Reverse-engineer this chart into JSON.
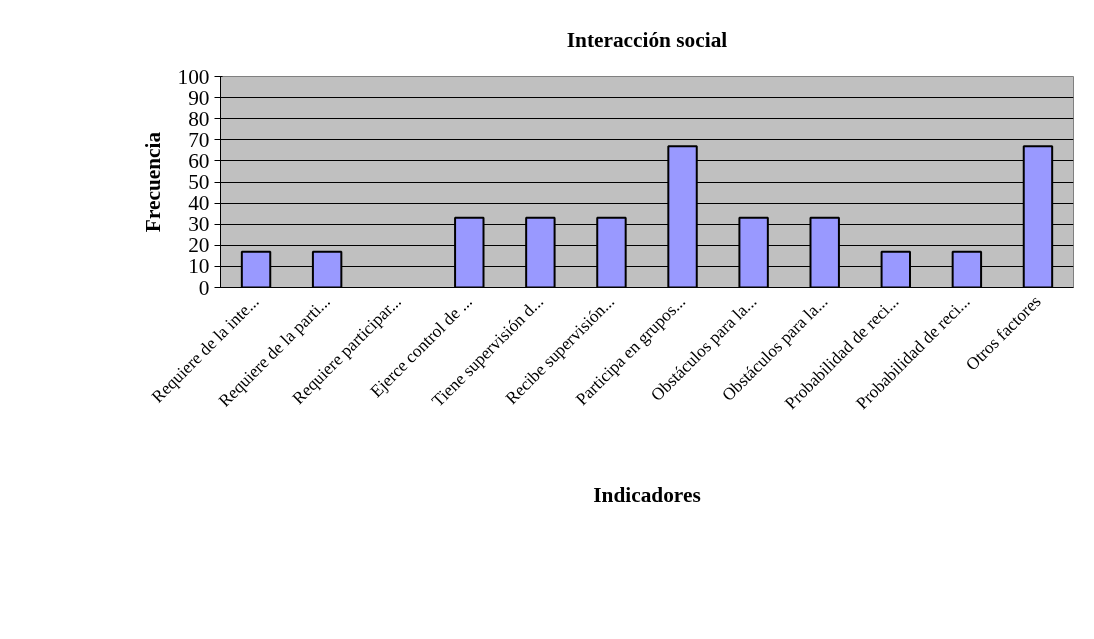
{
  "chart_data": {
    "type": "bar",
    "title": "Interacción social",
    "xlabel": "Indicadores",
    "ylabel": "Frecuencia",
    "categories": [
      "Requiere de la inte...",
      "Requiere de la parti...",
      "Requiere participar...",
      "Ejerce control de ...",
      "Tiene supervisión d...",
      "Recibe supervisión...",
      "Participa en grupos...",
      "Obstáculos para la...",
      "Obstáculos para la...",
      "Probabilidad de reci...",
      "Probabilidad de reci...",
      "Otros factores"
    ],
    "values": [
      17,
      17,
      null,
      33,
      33,
      33,
      67,
      33,
      33,
      17,
      17,
      67
    ],
    "color": "#9999ff",
    "ylim": [
      0,
      100
    ],
    "yticks": [
      0,
      10,
      20,
      30,
      40,
      50,
      60,
      70,
      80,
      90,
      100
    ],
    "grid": "y"
  }
}
